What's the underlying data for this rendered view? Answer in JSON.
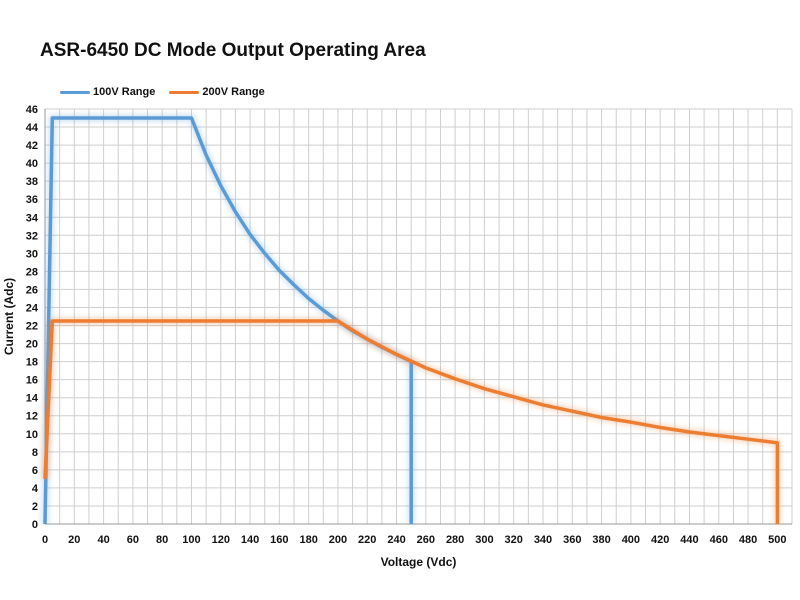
{
  "chart_data": {
    "type": "line",
    "title": "ASR-6450 DC Mode Output Operating Area",
    "xlabel": "Voltage (Vdc)",
    "ylabel": "Current (Adc)",
    "xlim": [
      0,
      510
    ],
    "ylim": [
      0,
      46
    ],
    "x_ticks": [
      0,
      20,
      40,
      60,
      80,
      100,
      120,
      140,
      160,
      180,
      200,
      220,
      240,
      260,
      280,
      300,
      320,
      340,
      360,
      380,
      400,
      420,
      440,
      460,
      480,
      500
    ],
    "y_ticks": [
      0,
      2,
      4,
      6,
      8,
      10,
      12,
      14,
      16,
      18,
      20,
      22,
      24,
      26,
      28,
      30,
      32,
      34,
      36,
      38,
      40,
      42,
      44,
      46
    ],
    "grid": true,
    "legend_position": "top-left",
    "series": [
      {
        "name": "100V Range",
        "color": "#5B9BD5",
        "x": [
          0,
          5,
          100,
          110,
          120,
          130,
          140,
          150,
          160,
          170,
          180,
          190,
          200,
          210,
          220,
          230,
          240,
          250,
          250
        ],
        "y": [
          0,
          45,
          45,
          40.9,
          37.5,
          34.6,
          32.1,
          30,
          28.1,
          26.5,
          25,
          23.7,
          22.5,
          21.4,
          20.5,
          19.6,
          18.8,
          18,
          0
        ]
      },
      {
        "name": "200V Range",
        "color": "#ED7D31",
        "x": [
          0,
          5,
          200,
          220,
          240,
          260,
          280,
          300,
          320,
          340,
          360,
          380,
          400,
          420,
          440,
          460,
          480,
          500,
          500
        ],
        "y": [
          5,
          22.5,
          22.5,
          20.5,
          18.8,
          17.3,
          16.1,
          15,
          14.1,
          13.2,
          12.5,
          11.8,
          11.3,
          10.7,
          10.2,
          9.8,
          9.4,
          9,
          0
        ]
      }
    ]
  }
}
